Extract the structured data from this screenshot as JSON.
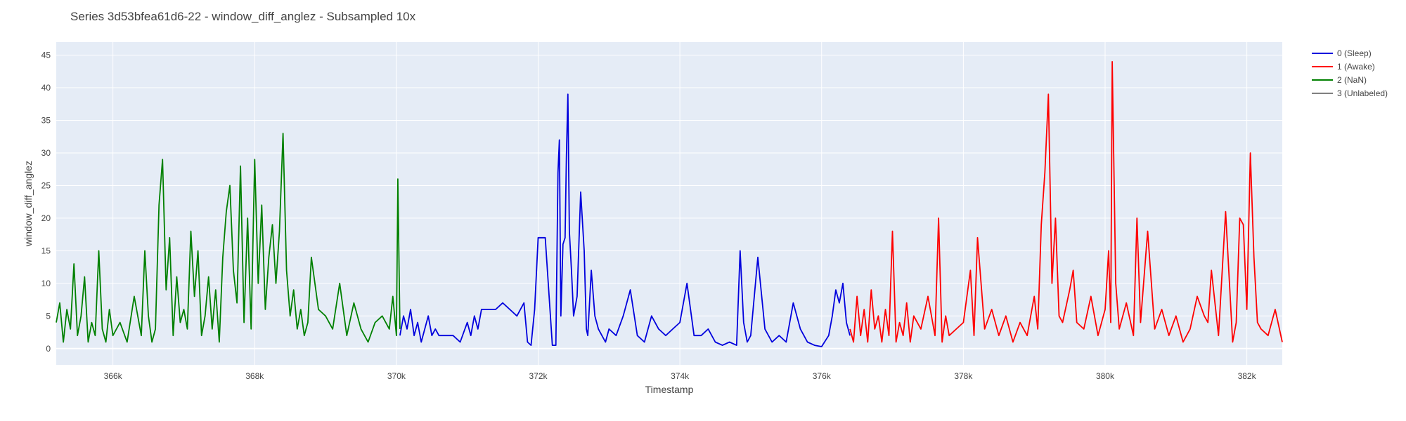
{
  "chart_data": {
    "type": "line",
    "title": "Series 3d53bfea61d6-22 - window_diff_anglez - Subsampled 10x",
    "xlabel": "Timestamp",
    "ylabel": "window_diff_anglez",
    "xlim": [
      365200,
      382500
    ],
    "ylim": [
      -2.5,
      47
    ],
    "xticks": [
      366000,
      368000,
      370000,
      372000,
      374000,
      376000,
      378000,
      380000,
      382000
    ],
    "xtick_labels": [
      "366k",
      "368k",
      "370k",
      "372k",
      "374k",
      "376k",
      "378k",
      "380k",
      "382k"
    ],
    "yticks": [
      0,
      5,
      10,
      15,
      20,
      25,
      30,
      35,
      40,
      45
    ],
    "ytick_labels": [
      "0",
      "5",
      "10",
      "15",
      "20",
      "25",
      "30",
      "35",
      "40",
      "45"
    ],
    "grid": true,
    "legend_position": "top-right outside",
    "colors": {
      "plot_bg": "#E5ECF6",
      "grid": "#ffffff"
    },
    "series": [
      {
        "name": "0 (Sleep)",
        "color": "#0000DD",
        "x": [
          370050,
          370100,
          370150,
          370200,
          370250,
          370300,
          370350,
          370400,
          370450,
          370500,
          370550,
          370600,
          370700,
          370800,
          370900,
          371000,
          371050,
          371100,
          371150,
          371200,
          371300,
          371400,
          371500,
          371600,
          371700,
          371800,
          371850,
          371900,
          371950,
          372000,
          372100,
          372200,
          372250,
          372280,
          372300,
          372320,
          372350,
          372380,
          372400,
          372420,
          372440,
          372470,
          372500,
          372550,
          372600,
          372650,
          372680,
          372700,
          372750,
          372800,
          372850,
          372900,
          372950,
          373000,
          373100,
          373200,
          373300,
          373400,
          373500,
          373600,
          373700,
          373800,
          373900,
          374000,
          374100,
          374200,
          374300,
          374400,
          374500,
          374600,
          374700,
          374800,
          374850,
          374900,
          374950,
          375000,
          375100,
          375200,
          375300,
          375400,
          375500,
          375600,
          375700,
          375800,
          375900,
          376000,
          376100,
          376150,
          376200,
          376250,
          376300,
          376350,
          376400
        ],
        "y": [
          2,
          5,
          3,
          6,
          2,
          4,
          1,
          3,
          5,
          2,
          3,
          2,
          2,
          2,
          1,
          4,
          2,
          5,
          3,
          6,
          6,
          6,
          7,
          6,
          5,
          7,
          1,
          0.5,
          6,
          17,
          17,
          0.5,
          0.5,
          27,
          32,
          5,
          16,
          17,
          30,
          39,
          18,
          12,
          5,
          8,
          24,
          15,
          3,
          2,
          12,
          5,
          3,
          2,
          1,
          3,
          2,
          5,
          9,
          2,
          1,
          5,
          3,
          2,
          3,
          4,
          10,
          2,
          2,
          3,
          1,
          0.5,
          1,
          0.5,
          15,
          4,
          1,
          2,
          14,
          3,
          1,
          2,
          1,
          7,
          3,
          1,
          0.5,
          0.3,
          2,
          5,
          9,
          7,
          10,
          4,
          2
        ]
      },
      {
        "name": "1 (Awake)",
        "color": "#FF0000",
        "x": [
          376400,
          376450,
          376500,
          376550,
          376600,
          376650,
          376700,
          376750,
          376800,
          376850,
          376900,
          376950,
          377000,
          377050,
          377100,
          377150,
          377200,
          377250,
          377300,
          377400,
          377500,
          377600,
          377650,
          377700,
          377750,
          377800,
          377900,
          378000,
          378100,
          378150,
          378200,
          378300,
          378400,
          378500,
          378600,
          378700,
          378800,
          378900,
          379000,
          379050,
          379100,
          379150,
          379200,
          379250,
          379300,
          379350,
          379400,
          379500,
          379550,
          379600,
          379700,
          379800,
          379900,
          380000,
          380050,
          380080,
          380100,
          380150,
          380200,
          380300,
          380400,
          380450,
          380500,
          380600,
          380700,
          380800,
          380900,
          381000,
          381100,
          381200,
          381300,
          381400,
          381450,
          381500,
          381600,
          381700,
          381800,
          381850,
          381900,
          381950,
          382000,
          382050,
          382100,
          382150,
          382200,
          382300,
          382400,
          382500
        ],
        "y": [
          3,
          1,
          8,
          2,
          6,
          1,
          9,
          3,
          5,
          1,
          6,
          2,
          18,
          1,
          4,
          2,
          7,
          1,
          5,
          3,
          8,
          2,
          20,
          1,
          5,
          2,
          3,
          4,
          12,
          2,
          17,
          3,
          6,
          2,
          5,
          1,
          4,
          2,
          8,
          3,
          19,
          27,
          39,
          10,
          20,
          5,
          4,
          9,
          12,
          4,
          3,
          8,
          2,
          6,
          15,
          4,
          44,
          10,
          3,
          7,
          2,
          20,
          4,
          18,
          3,
          6,
          2,
          5,
          1,
          3,
          8,
          5,
          4,
          12,
          2,
          21,
          1,
          4,
          20,
          19,
          6,
          30,
          14,
          4,
          3,
          2,
          6,
          1
        ]
      },
      {
        "name": "2 (NaN)",
        "color": "#008000",
        "x": [
          365200,
          365250,
          365300,
          365350,
          365400,
          365450,
          365500,
          365550,
          365600,
          365650,
          365700,
          365750,
          365800,
          365850,
          365900,
          365950,
          366000,
          366100,
          366200,
          366300,
          366400,
          366450,
          366500,
          366550,
          366600,
          366650,
          366700,
          366750,
          366800,
          366850,
          366900,
          366950,
          367000,
          367050,
          367100,
          367150,
          367200,
          367250,
          367300,
          367350,
          367400,
          367450,
          367500,
          367550,
          367600,
          367650,
          367700,
          367750,
          367800,
          367850,
          367900,
          367950,
          368000,
          368050,
          368100,
          368150,
          368200,
          368250,
          368300,
          368350,
          368400,
          368450,
          368500,
          368550,
          368600,
          368650,
          368700,
          368750,
          368800,
          368900,
          369000,
          369100,
          369200,
          369300,
          369400,
          369500,
          369600,
          369700,
          369800,
          369900,
          369950,
          370000,
          370020,
          370050
        ],
        "y": [
          4,
          7,
          1,
          6,
          3,
          13,
          2,
          5,
          11,
          1,
          4,
          2,
          15,
          3,
          1,
          6,
          2,
          4,
          1,
          8,
          2,
          15,
          5,
          1,
          3,
          22,
          29,
          9,
          17,
          2,
          11,
          4,
          6,
          3,
          18,
          8,
          15,
          2,
          5,
          11,
          3,
          9,
          1,
          14,
          21,
          25,
          12,
          7,
          28,
          4,
          20,
          3,
          29,
          10,
          22,
          6,
          14,
          19,
          10,
          18,
          33,
          12,
          5,
          9,
          3,
          6,
          2,
          4,
          14,
          6,
          5,
          3,
          10,
          2,
          7,
          3,
          1,
          4,
          5,
          3,
          8,
          2,
          26,
          3
        ]
      },
      {
        "name": "3 (Unlabeled)",
        "color": "#808080",
        "x": [],
        "y": []
      }
    ]
  }
}
